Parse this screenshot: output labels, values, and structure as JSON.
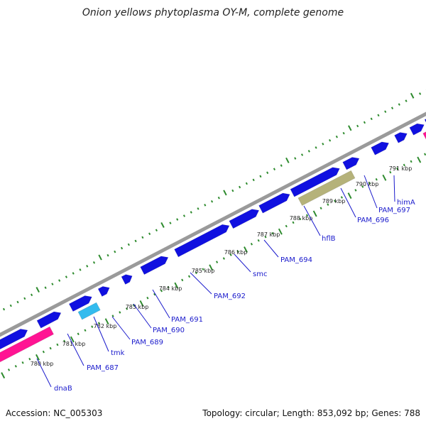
{
  "title": "Onion yellows phytoplasma OY-M, complete genome",
  "footer": {
    "accession": "Accession: NC_005303",
    "summary": "Topology: circular; Length: 853,092 bp; Genes: 788"
  },
  "colors": {
    "backbone": "#9a9a9a",
    "tick": "#2e8b2e",
    "label": "#1a1acc",
    "cds": "#1010e0",
    "magenta": "#ff1493",
    "cyan": "#33bbee",
    "olive": "#b5b27a",
    "orange": "#ff8c00"
  },
  "kbp_markers": [
    {
      "label": "780 kbp"
    },
    {
      "label": "781 kbp"
    },
    {
      "label": "782 kbp"
    },
    {
      "label": "783 kbp"
    },
    {
      "label": "784 kbp"
    },
    {
      "label": "785 kbp"
    },
    {
      "label": "786 kbp"
    },
    {
      "label": "787 kbp"
    },
    {
      "label": "788 kbp"
    },
    {
      "label": "789 kbp"
    },
    {
      "label": "790 kbp"
    },
    {
      "label": "791 kbp"
    }
  ],
  "gene_labels": [
    {
      "label": "dnaB"
    },
    {
      "label": "PAM_687"
    },
    {
      "label": "tmk"
    },
    {
      "label": "PAM_689"
    },
    {
      "label": "PAM_690"
    },
    {
      "label": "PAM_691"
    },
    {
      "label": "PAM_692"
    },
    {
      "label": "smc"
    },
    {
      "label": "PAM_694"
    },
    {
      "label": "hflB"
    },
    {
      "label": "PAM_696"
    },
    {
      "label": "PAM_697"
    },
    {
      "label": "himA"
    }
  ]
}
